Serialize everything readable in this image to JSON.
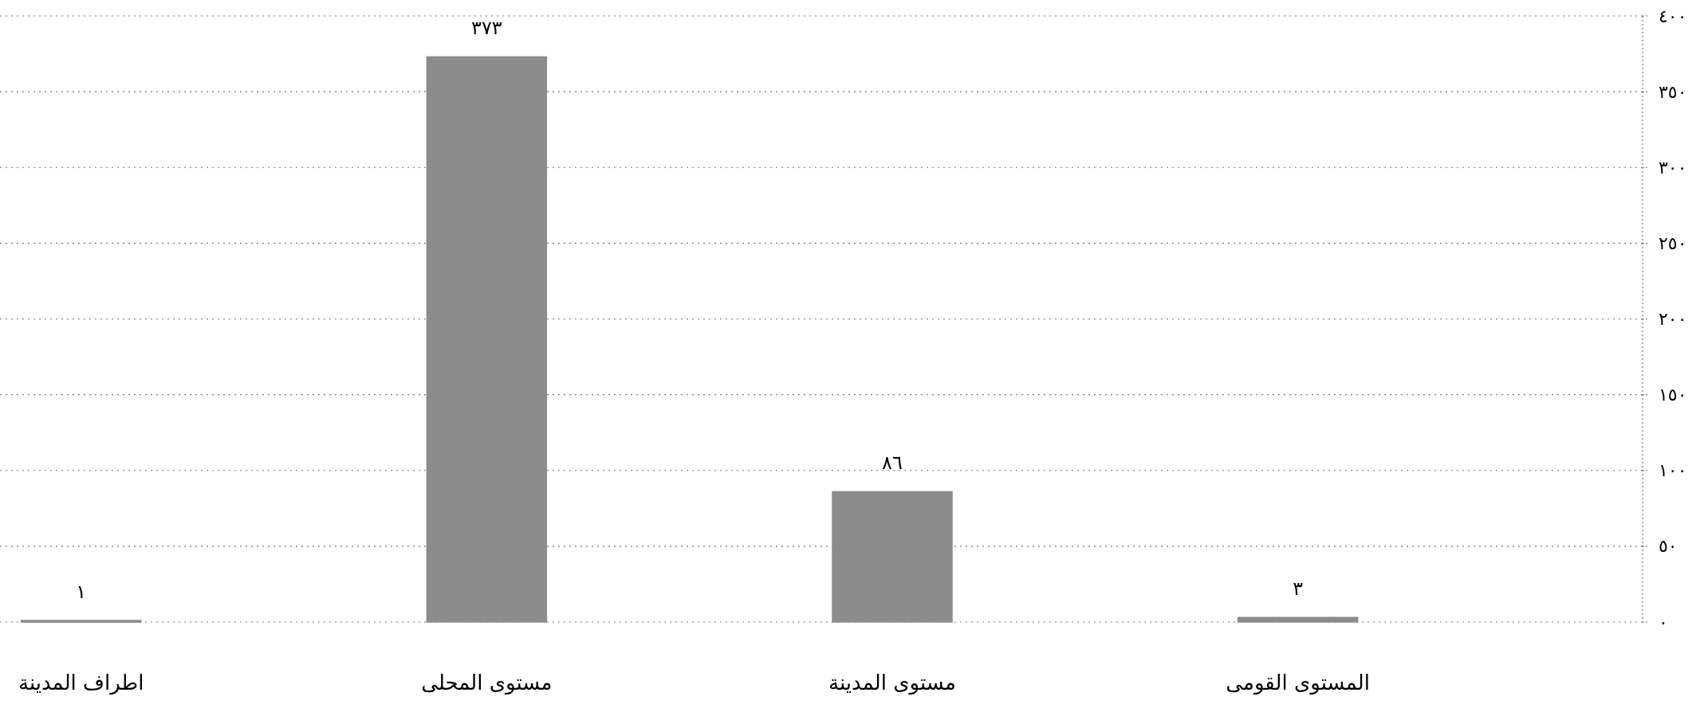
{
  "chart_data": {
    "type": "bar",
    "categories": [
      "اطراف المدينة",
      "مستوى المحلى",
      "مستوى المدينة",
      "المستوى القومى"
    ],
    "values": [
      1,
      373,
      86,
      3
    ],
    "value_labels": [
      "١",
      "٣٧٣",
      "٨٦",
      "٣"
    ],
    "color": "#8c8c8c",
    "ylim": [
      0,
      400
    ],
    "yticks": [
      {
        "value": 0,
        "label": "٠"
      },
      {
        "value": 50,
        "label": "٥٠"
      },
      {
        "value": 100,
        "label": "١٠٠"
      },
      {
        "value": 150,
        "label": "١٥٠"
      },
      {
        "value": 200,
        "label": "٢٠٠"
      },
      {
        "value": 250,
        "label": "٢٥٠"
      },
      {
        "value": 300,
        "label": "٣٠٠"
      },
      {
        "value": 350,
        "label": "٣٥٠"
      },
      {
        "value": 400,
        "label": "٤٠٠"
      }
    ],
    "grid": "y"
  }
}
